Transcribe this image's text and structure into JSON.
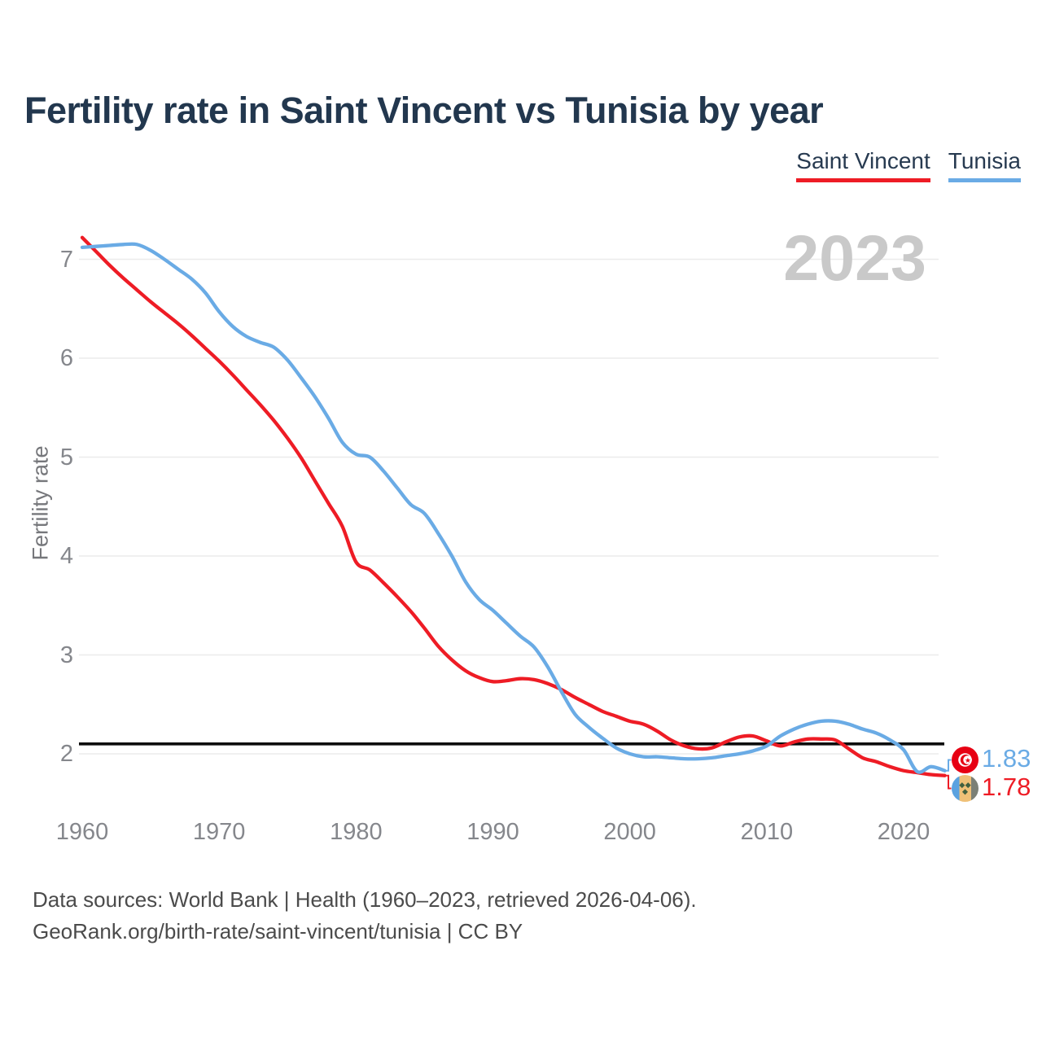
{
  "title": "Fertility rate in Saint Vincent vs Tunisia by year",
  "watermark": "2023",
  "legend": [
    {
      "label": "Saint Vincent",
      "color": "#ee1c25"
    },
    {
      "label": "Tunisia",
      "color": "#6aabe5"
    }
  ],
  "y_axis": {
    "label": "Fertility rate",
    "ticks": [
      7,
      6,
      5,
      4,
      3,
      2
    ]
  },
  "x_axis": {
    "ticks": [
      1960,
      1970,
      1980,
      1990,
      2000,
      2010,
      2020
    ]
  },
  "reference_line": {
    "value": 2.1,
    "color": "#0c0c0c"
  },
  "end_labels": [
    {
      "series": "Tunisia",
      "value": "1.83",
      "color": "#6aabe5",
      "icon": "tunisia-flag"
    },
    {
      "series": "Saint Vincent",
      "value": "1.78",
      "color": "#ee1c25",
      "icon": "saint-vincent-flag"
    }
  ],
  "footer": {
    "line1": "Data sources: World Bank | Health (1960–2023, retrieved 2026-04-06).",
    "line2": "GeoRank.org/birth-rate/saint-vincent/tunisia | CC BY"
  },
  "chart_data": {
    "type": "line",
    "title": "Fertility rate in Saint Vincent vs Tunisia by year",
    "xlabel": "",
    "ylabel": "Fertility rate",
    "xlim": [
      1959.7,
      2024
    ],
    "ylim": [
      1.55,
      7.45
    ],
    "grid": "horizontal",
    "legend_position": "top-right",
    "annotation_value": 2023,
    "reference_line_y": 2.1,
    "x": [
      1960,
      1961,
      1962,
      1963,
      1964,
      1965,
      1966,
      1967,
      1968,
      1969,
      1970,
      1971,
      1972,
      1973,
      1974,
      1975,
      1976,
      1977,
      1978,
      1979,
      1980,
      1981,
      1982,
      1983,
      1984,
      1985,
      1986,
      1987,
      1988,
      1989,
      1990,
      1991,
      1992,
      1993,
      1994,
      1995,
      1996,
      1997,
      1998,
      1999,
      2000,
      2001,
      2002,
      2003,
      2004,
      2005,
      2006,
      2007,
      2008,
      2009,
      2010,
      2011,
      2012,
      2013,
      2014,
      2015,
      2016,
      2017,
      2018,
      2019,
      2020,
      2021,
      2022,
      2023
    ],
    "series": [
      {
        "name": "Saint Vincent",
        "color": "#ee1c25",
        "values": [
          7.22,
          7.08,
          6.94,
          6.81,
          6.69,
          6.57,
          6.46,
          6.35,
          6.23,
          6.1,
          5.97,
          5.83,
          5.68,
          5.53,
          5.37,
          5.19,
          4.99,
          4.76,
          4.53,
          4.3,
          3.94,
          3.86,
          3.73,
          3.59,
          3.44,
          3.27,
          3.09,
          2.95,
          2.84,
          2.77,
          2.73,
          2.74,
          2.76,
          2.75,
          2.71,
          2.65,
          2.57,
          2.5,
          2.43,
          2.38,
          2.33,
          2.3,
          2.23,
          2.14,
          2.08,
          2.05,
          2.06,
          2.12,
          2.17,
          2.18,
          2.13,
          2.08,
          2.12,
          2.15,
          2.15,
          2.14,
          2.05,
          1.96,
          1.92,
          1.87,
          1.83,
          1.81,
          1.79,
          1.78
        ]
      },
      {
        "name": "Tunisia",
        "color": "#6aabe5",
        "values": [
          7.12,
          7.13,
          7.14,
          7.15,
          7.15,
          7.09,
          7.0,
          6.9,
          6.8,
          6.66,
          6.47,
          6.32,
          6.22,
          6.16,
          6.11,
          5.98,
          5.8,
          5.61,
          5.39,
          5.15,
          5.03,
          5.0,
          4.86,
          4.69,
          4.52,
          4.43,
          4.23,
          4.0,
          3.74,
          3.56,
          3.45,
          3.32,
          3.19,
          3.08,
          2.88,
          2.63,
          2.4,
          2.27,
          2.16,
          2.06,
          2.0,
          1.97,
          1.97,
          1.96,
          1.95,
          1.95,
          1.96,
          1.98,
          2.0,
          2.03,
          2.08,
          2.18,
          2.25,
          2.3,
          2.33,
          2.33,
          2.3,
          2.25,
          2.21,
          2.14,
          2.04,
          1.82,
          1.87,
          1.83
        ]
      }
    ]
  }
}
